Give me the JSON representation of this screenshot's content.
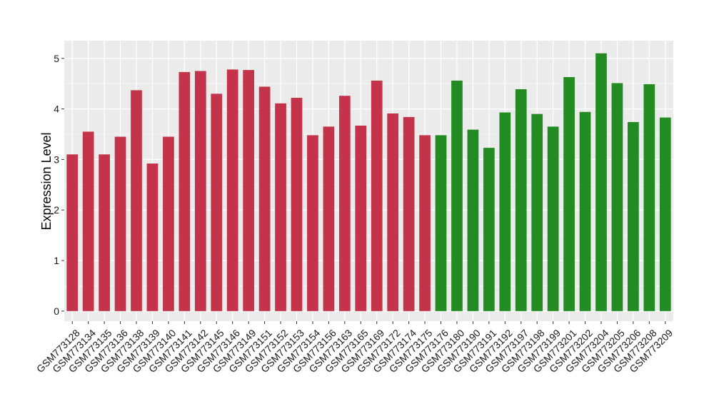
{
  "chart_data": {
    "type": "bar",
    "ylabel": "Expression Level",
    "xlabel": "",
    "ylim": [
      -0.2,
      5.35
    ],
    "yticks": [
      0,
      1,
      2,
      3,
      4,
      5
    ],
    "grid": true,
    "legend": "none",
    "colors": {
      "panel_background": "#EBEBEB",
      "grid": "#FFFFFF",
      "group_1": "#C3334A",
      "group_2": "#228B22"
    },
    "categories": [
      "GSM773128",
      "GSM773134",
      "GSM773135",
      "GSM773136",
      "GSM773138",
      "GSM773139",
      "GSM773140",
      "GSM773141",
      "GSM773142",
      "GSM773145",
      "GSM773146",
      "GSM773149",
      "GSM773151",
      "GSM773152",
      "GSM773153",
      "GSM773154",
      "GSM773156",
      "GSM773163",
      "GSM773165",
      "GSM773169",
      "GSM773172",
      "GSM773174",
      "GSM773175",
      "GSM773176",
      "GSM773180",
      "GSM773190",
      "GSM773191",
      "GSM773192",
      "GSM773197",
      "GSM773198",
      "GSM773199",
      "GSM773201",
      "GSM773202",
      "GSM773204",
      "GSM773205",
      "GSM773206",
      "GSM773208",
      "GSM773209"
    ],
    "values": [
      3.1,
      3.55,
      3.1,
      3.45,
      4.37,
      2.92,
      3.45,
      4.73,
      4.75,
      4.3,
      4.78,
      4.77,
      4.44,
      4.11,
      4.22,
      3.48,
      3.65,
      4.26,
      3.67,
      4.56,
      3.91,
      3.84,
      3.48,
      3.48,
      4.56,
      3.59,
      3.23,
      3.93,
      4.39,
      3.9,
      3.65,
      4.63,
      3.94,
      5.1,
      4.51,
      3.74,
      4.49,
      3.83
    ],
    "groups": [
      1,
      1,
      1,
      1,
      1,
      1,
      1,
      1,
      1,
      1,
      1,
      1,
      1,
      1,
      1,
      1,
      1,
      1,
      1,
      1,
      1,
      1,
      1,
      2,
      2,
      2,
      2,
      2,
      2,
      2,
      2,
      2,
      2,
      2,
      2,
      2,
      2,
      2
    ]
  }
}
